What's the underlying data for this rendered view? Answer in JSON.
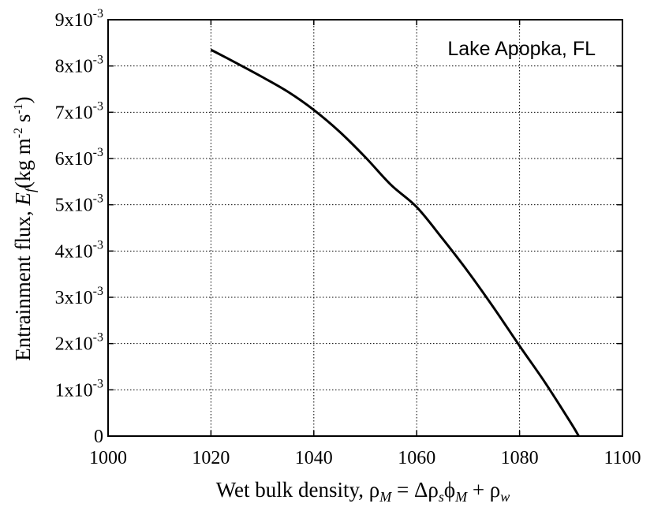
{
  "chart_data": {
    "type": "line",
    "xlim": [
      1000,
      1100
    ],
    "ylim": [
      0,
      0.009
    ],
    "x_ticks": [
      1000,
      1020,
      1040,
      1060,
      1080,
      1100
    ],
    "x_tick_labels": [
      "1000",
      "1020",
      "1040",
      "1060",
      "1080",
      "1100"
    ],
    "y_ticks": [
      0,
      0.001,
      0.002,
      0.003,
      0.004,
      0.005,
      0.006,
      0.007,
      0.008,
      0.009
    ],
    "y_tick_labels": [
      {
        "mant": "0",
        "exp": ""
      },
      {
        "mant": "1x10",
        "exp": "-3"
      },
      {
        "mant": "2x10",
        "exp": "-3"
      },
      {
        "mant": "3x10",
        "exp": "-3"
      },
      {
        "mant": "4x10",
        "exp": "-3"
      },
      {
        "mant": "5x10",
        "exp": "-3"
      },
      {
        "mant": "6x10",
        "exp": "-3"
      },
      {
        "mant": "7x10",
        "exp": "-3"
      },
      {
        "mant": "8x10",
        "exp": "-3"
      },
      {
        "mant": "9x10",
        "exp": "-3"
      }
    ],
    "grid": true,
    "xlabel": {
      "text": "Wet bulk density, ",
      "rho": "ρ",
      "M": "M",
      "eq": " = Δρ",
      "s": "s",
      "phi": "ϕ",
      "M2": "M",
      "plus": " + ρ",
      "w": "w"
    },
    "ylabel": {
      "text": "Entrainment flux, ",
      "E": "E",
      "f": "f",
      "units_a": "(kg m",
      "exp1": "-2",
      "units_b": " s",
      "exp2": "-1",
      "units_c": ")"
    },
    "annotation": "Lake Apopka, FL",
    "annotation_position": "top-right",
    "series": [
      {
        "x": [
          1020,
          1025,
          1030,
          1035,
          1040,
          1045,
          1050,
          1055,
          1060,
          1065,
          1070,
          1075,
          1080,
          1085,
          1090,
          1091.5
        ],
        "y": [
          0.00835,
          0.00806,
          0.00776,
          0.00744,
          0.00705,
          0.00658,
          0.00603,
          0.00543,
          0.00495,
          0.00427,
          0.00355,
          0.00277,
          0.00195,
          0.00115,
          0.00028,
          0.0
        ],
        "color": "#000000"
      }
    ]
  }
}
